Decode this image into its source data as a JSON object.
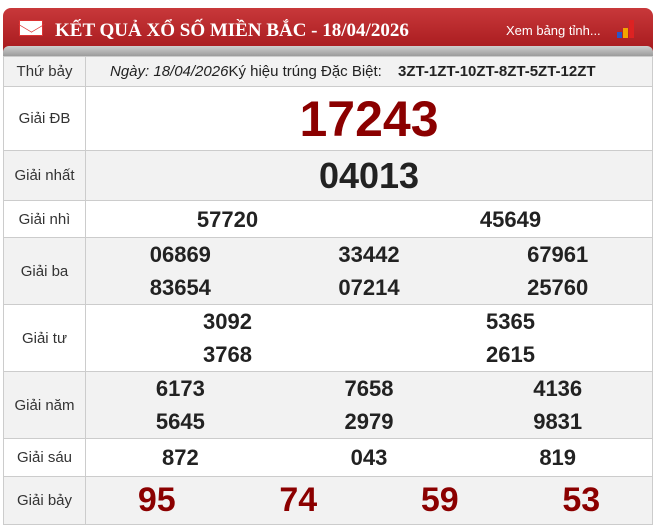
{
  "header": {
    "title": "KẾT QUẢ XỔ SỐ MIỀN BẮC - 18/04/2026",
    "link": "Xem bảng tỉnh...",
    "icons": [
      "mail-icon",
      "bar-chart-icon"
    ]
  },
  "info": {
    "weekday": "Thứ bảy",
    "date": "Ngày: 18/04/2026",
    "code_label": "Ký hiệu trúng Đặc Biệt:",
    "code": "3ZT-1ZT-10ZT-8ZT-5ZT-12ZT"
  },
  "prizes": [
    {
      "label": "Giải ĐB",
      "numbers": [
        "17243"
      ]
    },
    {
      "label": "Giải nhất",
      "numbers": [
        "04013"
      ]
    },
    {
      "label": "Giải nhì",
      "numbers": [
        "57720",
        "45649"
      ]
    },
    {
      "label": "Giải ba",
      "numbers": [
        "06869",
        "33442",
        "67961",
        "83654",
        "07214",
        "25760"
      ]
    },
    {
      "label": "Giải tư",
      "numbers": [
        "3092",
        "5365",
        "3768",
        "2615"
      ]
    },
    {
      "label": "Giải năm",
      "numbers": [
        "6173",
        "7658",
        "4136",
        "5645",
        "2979",
        "9831"
      ]
    },
    {
      "label": "Giải sáu",
      "numbers": [
        "872",
        "043",
        "819"
      ]
    },
    {
      "label": "Giải bảy",
      "numbers": [
        "95",
        "74",
        "59",
        "53"
      ]
    }
  ],
  "colors": {
    "header": "#b3201f",
    "special": "#8b0000"
  }
}
